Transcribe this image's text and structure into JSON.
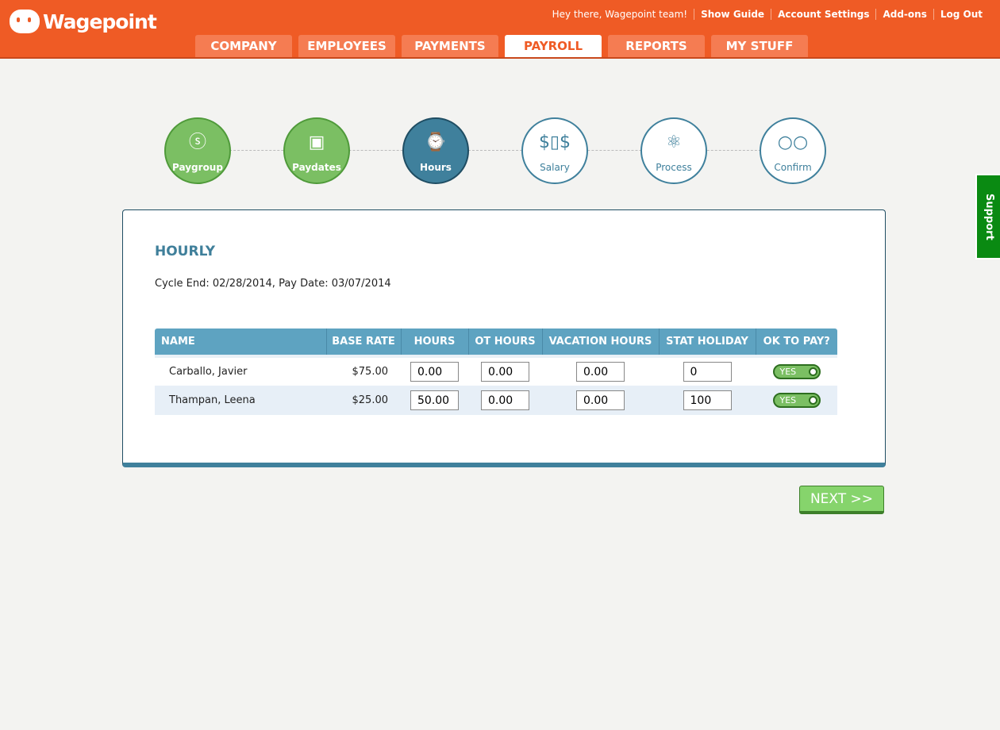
{
  "header": {
    "brand": "Wagepoint",
    "greeting": "Hey there, Wagepoint team!",
    "links": [
      "Show Guide",
      "Account Settings",
      "Add-ons",
      "Log Out"
    ],
    "tabs": [
      {
        "label": "COMPANY"
      },
      {
        "label": "EMPLOYEES"
      },
      {
        "label": "PAYMENTS"
      },
      {
        "label": "PAYROLL",
        "active": true
      },
      {
        "label": "REPORTS"
      },
      {
        "label": "MY STUFF"
      }
    ],
    "accent": "#ef5b25"
  },
  "steps": [
    {
      "label": "Paygroup",
      "icon": "dollar-coin-icon",
      "state": "done"
    },
    {
      "label": "Paydates",
      "icon": "calendar-icon",
      "state": "done"
    },
    {
      "label": "Hours",
      "icon": "watch-icon",
      "state": "current"
    },
    {
      "label": "Salary",
      "icon": "money-icon",
      "state": "todo"
    },
    {
      "label": "Process",
      "icon": "atom-icon",
      "state": "todo"
    },
    {
      "label": "Confirm",
      "icon": "glasses-icon",
      "state": "todo"
    }
  ],
  "main": {
    "title": "HOURLY",
    "cycle": "Cycle End: 02/28/2014, Pay Date: 03/07/2014",
    "columns": [
      "NAME",
      "BASE RATE",
      "HOURS",
      "OT HOURS",
      "VACATION HOURS",
      "STAT HOLIDAY",
      "OK TO PAY?"
    ],
    "rows": [
      {
        "name": "Carballo, Javier",
        "rate": "$75.00",
        "hours": "0.00",
        "ot": "0.00",
        "vacation": "0.00",
        "stat": "0",
        "ok": "YES"
      },
      {
        "name": "Thampan, Leena",
        "rate": "$25.00",
        "hours": "50.00",
        "ot": "0.00",
        "vacation": "0.00",
        "stat": "100",
        "ok": "YES"
      }
    ],
    "next_label": "NEXT >>"
  },
  "support_label": "Support"
}
